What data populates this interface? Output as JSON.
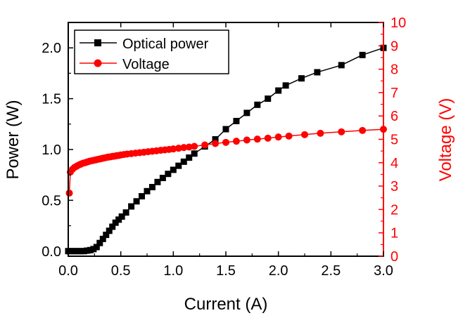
{
  "chart_data": {
    "type": "line",
    "title": "",
    "xlabel": "Current (A)",
    "ylabel": "Power (W)",
    "y2label": "Voltage (V)",
    "xlim": [
      0,
      3.0
    ],
    "ylim": [
      -0.05,
      2.25
    ],
    "y2lim": [
      0,
      10
    ],
    "xticks": [
      "0.0",
      "0.5",
      "1.0",
      "1.5",
      "2.0",
      "2.5",
      "3.0"
    ],
    "yticks": [
      "0.0",
      "0.5",
      "1.0",
      "1.5",
      "2.0"
    ],
    "y2ticks": [
      "0",
      "1",
      "2",
      "3",
      "4",
      "5",
      "6",
      "7",
      "8",
      "9",
      "10"
    ],
    "grid": false,
    "legend": "top-left",
    "colors": {
      "power": "#000000",
      "voltage": "#ff0000"
    },
    "series": [
      {
        "name": "Optical power",
        "axis": "left",
        "marker": "square",
        "x": [
          0.0,
          0.03,
          0.06,
          0.09,
          0.12,
          0.15,
          0.18,
          0.21,
          0.24,
          0.27,
          0.3,
          0.33,
          0.36,
          0.39,
          0.42,
          0.45,
          0.48,
          0.51,
          0.55,
          0.6,
          0.65,
          0.7,
          0.75,
          0.8,
          0.85,
          0.9,
          0.95,
          1.0,
          1.05,
          1.1,
          1.15,
          1.2,
          1.3,
          1.4,
          1.5,
          1.6,
          1.7,
          1.8,
          1.9,
          2.0,
          2.07,
          2.22,
          2.37,
          2.6,
          2.8,
          3.0
        ],
        "values": [
          0.0,
          0.0,
          0.0,
          0.0,
          0.0,
          0.0,
          0.005,
          0.01,
          0.02,
          0.04,
          0.08,
          0.12,
          0.16,
          0.2,
          0.24,
          0.28,
          0.31,
          0.34,
          0.38,
          0.44,
          0.49,
          0.54,
          0.59,
          0.63,
          0.68,
          0.72,
          0.76,
          0.8,
          0.84,
          0.88,
          0.92,
          0.96,
          1.03,
          1.1,
          1.2,
          1.28,
          1.36,
          1.44,
          1.5,
          1.58,
          1.63,
          1.7,
          1.76,
          1.83,
          1.93,
          2.0
        ]
      },
      {
        "name": "Voltage",
        "axis": "right",
        "marker": "circle",
        "x": [
          0.01,
          0.02,
          0.04,
          0.06,
          0.08,
          0.1,
          0.12,
          0.14,
          0.16,
          0.18,
          0.2,
          0.22,
          0.24,
          0.26,
          0.28,
          0.3,
          0.32,
          0.34,
          0.36,
          0.38,
          0.4,
          0.42,
          0.44,
          0.46,
          0.48,
          0.5,
          0.53,
          0.56,
          0.6,
          0.64,
          0.68,
          0.72,
          0.76,
          0.8,
          0.84,
          0.88,
          0.92,
          0.96,
          1.0,
          1.05,
          1.1,
          1.15,
          1.2,
          1.3,
          1.4,
          1.5,
          1.6,
          1.7,
          1.8,
          1.9,
          2.0,
          2.1,
          2.25,
          2.4,
          2.6,
          2.8,
          3.0
        ],
        "values": [
          2.7,
          3.6,
          3.72,
          3.8,
          3.85,
          3.9,
          3.94,
          3.98,
          4.0,
          4.03,
          4.06,
          4.08,
          4.1,
          4.12,
          4.14,
          4.16,
          4.18,
          4.2,
          4.22,
          4.24,
          4.25,
          4.27,
          4.28,
          4.3,
          4.31,
          4.33,
          4.35,
          4.37,
          4.39,
          4.41,
          4.43,
          4.45,
          4.47,
          4.49,
          4.51,
          4.53,
          4.55,
          4.57,
          4.59,
          4.62,
          4.65,
          4.67,
          4.7,
          4.76,
          4.82,
          4.87,
          4.92,
          4.97,
          5.01,
          5.05,
          5.1,
          5.14,
          5.2,
          5.26,
          5.32,
          5.38,
          5.43
        ]
      }
    ]
  }
}
